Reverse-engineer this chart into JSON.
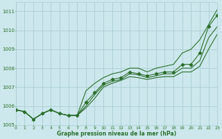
{
  "title": "Graphe pression niveau de la mer (hPa)",
  "bg_color": "#cce8ec",
  "grid_color": "#aacdd4",
  "line_color": "#2d6e2d",
  "xlim": [
    0,
    23
  ],
  "ylim": [
    1005,
    1011.5
  ],
  "yticks": [
    1005,
    1006,
    1007,
    1008,
    1009,
    1010,
    1011
  ],
  "xticks": [
    0,
    1,
    2,
    3,
    4,
    5,
    6,
    7,
    8,
    9,
    10,
    11,
    12,
    13,
    14,
    15,
    16,
    17,
    18,
    19,
    20,
    21,
    22,
    23
  ],
  "series": [
    {
      "x": [
        0,
        1,
        2,
        3,
        4,
        5,
        6,
        7,
        8,
        9,
        10,
        11,
        12,
        13,
        14,
        15,
        16,
        17,
        18,
        19,
        20,
        21,
        22,
        23
      ],
      "y": [
        1005.8,
        1005.7,
        1005.3,
        1005.6,
        1005.8,
        1005.6,
        1005.5,
        1005.5,
        1006.8,
        1007.2,
        1007.5,
        1007.7,
        1007.8,
        1008.0,
        1008.0,
        1007.8,
        1008.0,
        1008.1,
        1008.2,
        1008.8,
        1009.0,
        1009.5,
        1010.3,
        1011.1
      ],
      "marker": false,
      "lw": 0.8
    },
    {
      "x": [
        0,
        1,
        2,
        3,
        4,
        5,
        6,
        7,
        8,
        9,
        10,
        11,
        12,
        13,
        14,
        15,
        16,
        17,
        18,
        19,
        20,
        21,
        22,
        23
      ],
      "y": [
        1005.8,
        1005.7,
        1005.3,
        1005.6,
        1005.8,
        1005.6,
        1005.5,
        1005.5,
        1006.2,
        1006.7,
        1007.2,
        1007.4,
        1007.5,
        1007.8,
        1007.7,
        1007.6,
        1007.7,
        1007.8,
        1007.8,
        1008.2,
        1008.2,
        1008.8,
        1010.2,
        1010.8
      ],
      "marker": true,
      "lw": 0.8
    },
    {
      "x": [
        0,
        1,
        2,
        3,
        4,
        5,
        6,
        7,
        8,
        9,
        10,
        11,
        12,
        13,
        14,
        15,
        16,
        17,
        18,
        19,
        20,
        21,
        22,
        23
      ],
      "y": [
        1005.8,
        1005.7,
        1005.3,
        1005.6,
        1005.8,
        1005.6,
        1005.5,
        1005.5,
        1006.0,
        1006.6,
        1007.1,
        1007.3,
        1007.4,
        1007.7,
        1007.65,
        1007.5,
        1007.6,
        1007.7,
        1007.7,
        1008.0,
        1008.0,
        1008.4,
        1009.6,
        1010.2
      ],
      "marker": false,
      "lw": 0.8
    },
    {
      "x": [
        0,
        1,
        2,
        3,
        4,
        5,
        6,
        7,
        8,
        9,
        10,
        11,
        12,
        13,
        14,
        15,
        16,
        17,
        18,
        19,
        20,
        21,
        22,
        23
      ],
      "y": [
        1005.8,
        1005.7,
        1005.3,
        1005.6,
        1005.8,
        1005.6,
        1005.5,
        1005.5,
        1005.9,
        1006.4,
        1007.0,
        1007.2,
        1007.35,
        1007.55,
        1007.5,
        1007.4,
        1007.5,
        1007.55,
        1007.55,
        1007.8,
        1007.8,
        1008.1,
        1009.0,
        1009.8
      ],
      "marker": false,
      "lw": 0.8
    }
  ]
}
